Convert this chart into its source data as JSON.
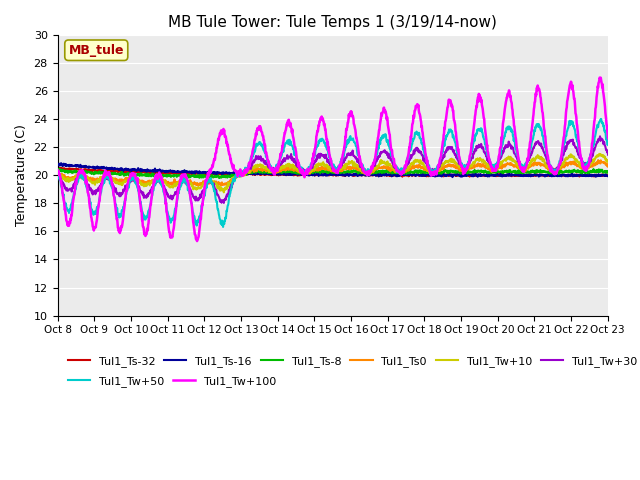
{
  "title": "MB Tule Tower: Tule Temps 1 (3/19/14-now)",
  "ylabel": "Temperature (C)",
  "ylim": [
    10,
    30
  ],
  "yticks": [
    10,
    12,
    14,
    16,
    18,
    20,
    22,
    24,
    26,
    28,
    30
  ],
  "xlabel_ticks": [
    "Oct 8",
    "Oct 9",
    "Oct 10",
    "Oct 11",
    "Oct 12",
    "Oct 13",
    "Oct 14",
    "Oct 15",
    "Oct 16",
    "Oct 17",
    "Oct 18",
    "Oct 19",
    "Oct 20",
    "Oct 21",
    "Oct 22",
    "Oct 23"
  ],
  "n_days": 16,
  "inset_label": "MB_tule",
  "series": [
    {
      "name": "Tul1_Ts-32",
      "color": "#cc0000",
      "lw": 1.5
    },
    {
      "name": "Tul1_Ts-16",
      "color": "#000099",
      "lw": 1.5
    },
    {
      "name": "Tul1_Ts-8",
      "color": "#00bb00",
      "lw": 1.5
    },
    {
      "name": "Tul1_Ts0",
      "color": "#ff8800",
      "lw": 1.5
    },
    {
      "name": "Tul1_Tw+10",
      "color": "#cccc00",
      "lw": 1.5
    },
    {
      "name": "Tul1_Tw+30",
      "color": "#9900cc",
      "lw": 1.5
    },
    {
      "name": "Tul1_Tw+50",
      "color": "#00cccc",
      "lw": 1.5
    },
    {
      "name": "Tul1_Tw+100",
      "color": "#ff00ff",
      "lw": 1.8
    }
  ],
  "background_color": "#ffffff",
  "grid_color": "#cccccc",
  "legend_ncol_row1": 6,
  "legend_ncol_row2": 2
}
